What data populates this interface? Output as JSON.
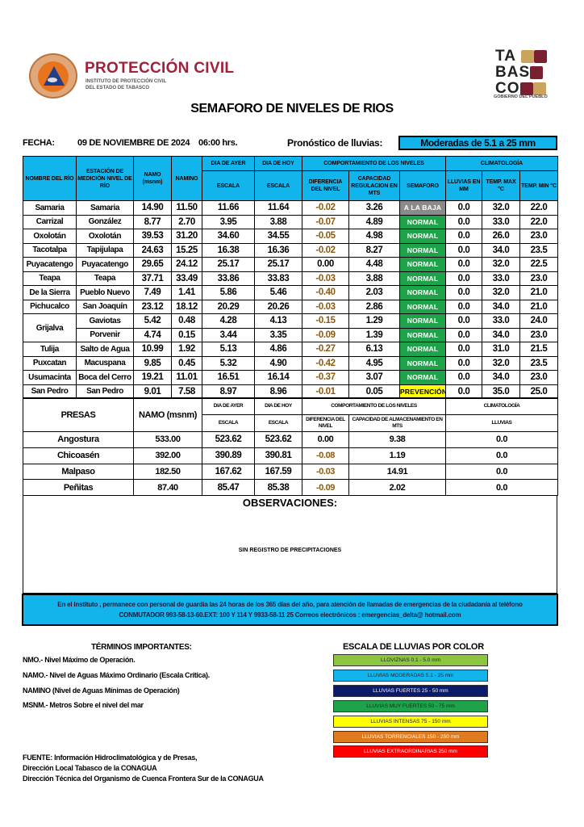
{
  "header": {
    "org_title": "PROTECCIÓN CIVIL",
    "org_subtitle_1": "INSTITUTO DE PROTECCIÓN CIVIL",
    "org_subtitle_2": "DEL ESTADO DE TABASCO",
    "logo_left_text": "SISTEMA PROTECCIÓN CIVIL TABASCO",
    "logo_right_lines": [
      "TA",
      "BAS",
      "CO"
    ],
    "logo_right_sub": "GOBIERNO DEL PUEBLO"
  },
  "title": "SEMAFORO DE NIVELES DE RIOS",
  "fecha_label": "FECHA:",
  "fecha": "09 DE NOVIEMBRE DE 2024",
  "hora": "06:00 hrs.",
  "pronostico_label": "Pronóstico de lluvias:",
  "pronostico": "Moderadas de 5.1 a 25 mm",
  "rivers": {
    "headers": {
      "rio": "NOMBRE DEL RÍO",
      "estacion": "ESTACIÓN DE MEDICIÓN NIVEL DE RÍO",
      "namo": "NAMO (msnm)",
      "namino": "NAMINO",
      "ayer": "DIA DE AYER",
      "hoy": "DIA DE HOY",
      "comportamiento": "COMPORTAMIENTO DE LOS NIVELES",
      "climatologia": "CLIMATOLOGÍA",
      "escala": "ESCALA",
      "diferencia": "DIFERENCIA DEL NIVEL",
      "capacidad": "CAPACIDAD REGULACION EN MTS",
      "semaforo": "SEMAFORO",
      "lluvias": "LLUVIAS EN MM",
      "tmax": "TEMP. MAX °C",
      "tmin": "TEMP. MIN °C"
    },
    "rows": [
      {
        "rio": "Samaria",
        "estacion": "Samaria",
        "namo": "14.90",
        "namino": "11.50",
        "ayer": "11.66",
        "hoy": "11.64",
        "dif": "-0.02",
        "cap": "3.26",
        "sem": "A LA BAJA",
        "sem_color": "gray",
        "lluvia": "0.0",
        "tmax": "32.0",
        "tmin": "22.0"
      },
      {
        "rio": "Carrizal",
        "estacion": "González",
        "namo": "8.77",
        "namino": "2.70",
        "ayer": "3.95",
        "hoy": "3.88",
        "dif": "-0.07",
        "cap": "4.89",
        "sem": "NORMAL",
        "sem_color": "green",
        "lluvia": "0.0",
        "tmax": "33.0",
        "tmin": "22.0"
      },
      {
        "rio": "Oxolotán",
        "estacion": "Oxolotán",
        "namo": "39.53",
        "namino": "31.20",
        "ayer": "34.60",
        "hoy": "34.55",
        "dif": "-0.05",
        "cap": "4.98",
        "sem": "NORMAL",
        "sem_color": "green",
        "lluvia": "0.0",
        "tmax": "26.0",
        "tmin": "23.0"
      },
      {
        "rio": "Tacotalpa",
        "estacion": "Tapijulapa",
        "namo": "24.63",
        "namino": "15.25",
        "ayer": "16.38",
        "hoy": "16.36",
        "dif": "-0.02",
        "cap": "8.27",
        "sem": "NORMAL",
        "sem_color": "green",
        "lluvia": "0.0",
        "tmax": "34.0",
        "tmin": "23.5"
      },
      {
        "rio": "Puyacatengo",
        "estacion": "Puyacatengo",
        "namo": "29.65",
        "namino": "24.12",
        "ayer": "25.17",
        "hoy": "25.17",
        "dif": "0.00",
        "cap": "4.48",
        "sem": "NORMAL",
        "sem_color": "green",
        "lluvia": "0.0",
        "tmax": "32.0",
        "tmin": "22.5"
      },
      {
        "rio": "Teapa",
        "estacion": "Teapa",
        "namo": "37.71",
        "namino": "33.49",
        "ayer": "33.86",
        "hoy": "33.83",
        "dif": "-0.03",
        "cap": "3.88",
        "sem": "NORMAL",
        "sem_color": "green",
        "lluvia": "0.0",
        "tmax": "33.0",
        "tmin": "23.0"
      },
      {
        "rio": "De la Sierra",
        "estacion": "Pueblo Nuevo",
        "namo": "7.49",
        "namino": "1.41",
        "ayer": "5.86",
        "hoy": "5.46",
        "dif": "-0.40",
        "cap": "2.03",
        "sem": "NORMAL",
        "sem_color": "green",
        "lluvia": "0.0",
        "tmax": "32.0",
        "tmin": "21.0"
      },
      {
        "rio": "Pichucalco",
        "estacion": "San Joaquín",
        "namo": "23.12",
        "namino": "18.12",
        "ayer": "20.29",
        "hoy": "20.26",
        "dif": "-0.03",
        "cap": "2.86",
        "sem": "NORMAL",
        "sem_color": "green",
        "lluvia": "0.0",
        "tmax": "34.0",
        "tmin": "21.0"
      },
      {
        "rio": "Grijalva",
        "estacion": "Gaviotas",
        "namo": "5.42",
        "namino": "0.48",
        "ayer": "4.28",
        "hoy": "4.13",
        "dif": "-0.15",
        "cap": "1.29",
        "sem": "NORMAL",
        "sem_color": "green",
        "lluvia": "0.0",
        "tmax": "33.0",
        "tmin": "24.0"
      },
      {
        "rio": "",
        "estacion": "Porvenir",
        "namo": "4.74",
        "namino": "0.15",
        "ayer": "3.44",
        "hoy": "3.35",
        "dif": "-0.09",
        "cap": "1.39",
        "sem": "NORMAL",
        "sem_color": "green",
        "lluvia": "0.0",
        "tmax": "34.0",
        "tmin": "23.0"
      },
      {
        "rio": "Tulija",
        "estacion": "Salto de Agua",
        "namo": "10.99",
        "namino": "1.92",
        "ayer": "5.13",
        "hoy": "4.86",
        "dif": "-0.27",
        "cap": "6.13",
        "sem": "NORMAL",
        "sem_color": "green",
        "lluvia": "0.0",
        "tmax": "31.0",
        "tmin": "21.5"
      },
      {
        "rio": "Puxcatan",
        "estacion": "Macuspana",
        "namo": "9.85",
        "namino": "0.45",
        "ayer": "5.32",
        "hoy": "4.90",
        "dif": "-0.42",
        "cap": "4.95",
        "sem": "NORMAL",
        "sem_color": "green",
        "lluvia": "0.0",
        "tmax": "32.0",
        "tmin": "23.5"
      },
      {
        "rio": "Usumacinta",
        "estacion": "Boca del Cerro",
        "namo": "19.21",
        "namino": "11.01",
        "ayer": "16.51",
        "hoy": "16.14",
        "dif": "-0.37",
        "cap": "3.07",
        "sem": "NORMAL",
        "sem_color": "green",
        "lluvia": "0.0",
        "tmax": "34.0",
        "tmin": "23.0"
      },
      {
        "rio": "San Pedro",
        "estacion": "San Pedro",
        "namo": "9.01",
        "namino": "7.58",
        "ayer": "8.97",
        "hoy": "8.96",
        "dif": "-0.01",
        "cap": "0.05",
        "sem": "PREVENCIÓN",
        "sem_color": "yellow",
        "lluvia": "0.0",
        "tmax": "35.0",
        "tmin": "25.0"
      }
    ]
  },
  "dams": {
    "headers": {
      "presas": "PRESAS",
      "namo": "NAMO (msnm)",
      "ayer": "DIA DE AYER",
      "hoy": "DIA DE HOY",
      "comportamiento": "COMPORTAMIENTO DE LOS NIVELES",
      "climatologia": "CLIMATOLOGÍA",
      "escala": "ESCALA",
      "diferencia": "DIFERENCIA DEL NIVEL",
      "capacidad": "CAPACIDAD DE ALMACENAMIENTO EN MTS",
      "lluvias": "LLUVIAS"
    },
    "rows": [
      {
        "name": "Angostura",
        "namo": "533.00",
        "ayer": "523.62",
        "hoy": "523.62",
        "dif": "0.00",
        "cap": "9.38",
        "lluvia": "0.0"
      },
      {
        "name": "Chicoasén",
        "namo": "392.00",
        "ayer": "390.89",
        "hoy": "390.81",
        "dif": "-0.08",
        "cap": "1.19",
        "lluvia": "0.0"
      },
      {
        "name": "Malpaso",
        "namo": "182.50",
        "ayer": "167.62",
        "hoy": "167.59",
        "dif": "-0.03",
        "cap": "14.91",
        "lluvia": "0.0"
      },
      {
        "name": "Peñitas",
        "namo": "87.40",
        "ayer": "85.47",
        "hoy": "85.38",
        "dif": "-0.09",
        "cap": "2.02",
        "lluvia": "0.0"
      }
    ]
  },
  "observaciones": {
    "title": "OBSERVACIONES:",
    "body": "SIN REGISTRO DE PRECIPITACIONES"
  },
  "info": {
    "line1": "En el Instituto , permanece con personal de guardia las 24 horas de los 365 días del año, para atención de llamadas de emergencias de la ciudadanía al teléfono",
    "line2": "CONMUTADOR  993-58-13-60.EXT: 100 Y 114  Y 9933-58-11 25   Correos electrónicos : emergencias_delta@ hotmail.com"
  },
  "terms": {
    "title": "TÉRMINOS IMPORTANTES:",
    "items": [
      "NMO.- Nivel Máximo de Operación.",
      "NAMO.- Nivel de Aguas Máximo Ordinario (Escala Crítica).",
      "NAMINO (Nivel de Aguas Mínimas de Operación)",
      "MSNM.- Metros Sobre el nivel del mar"
    ]
  },
  "rain_scale": {
    "title": "ESCALA DE LLUVIAS POR COLOR",
    "items": [
      {
        "label": "LLOVIZNAS  0.1 -  5.0 mm",
        "color": "#8cc63f"
      },
      {
        "label": "LLUVIAS MODERADAS 5.1 - 25 mm",
        "color": "#12b4ec"
      },
      {
        "label": "LLUVIAS FUERTES        25 - 50 mm",
        "color": "#0b1a6b"
      },
      {
        "label": "LLUVIAS MUY FUERTES  50 - 75 mm",
        "color": "#1fa34a"
      },
      {
        "label": "LLUVIAS INTENSAS    75 - 150 mm",
        "color": "#ffff00"
      },
      {
        "label": "LLUVIAS TORRENCIALES  150 - 250  mm",
        "color": "#e07a1f"
      },
      {
        "label": "LLUVIAS EXTRAORDINARIAS 250  mm",
        "color": "#ff0000"
      }
    ]
  },
  "source": {
    "line1": "FUENTE: Información Hidroclimatológica y de Presas,",
    "line2": "Dirección Local Tabasco de la CONAGUA",
    "line3": "Dirección Técnica del Organismo de Cuenca Frontera Sur de la CONAGUA"
  }
}
